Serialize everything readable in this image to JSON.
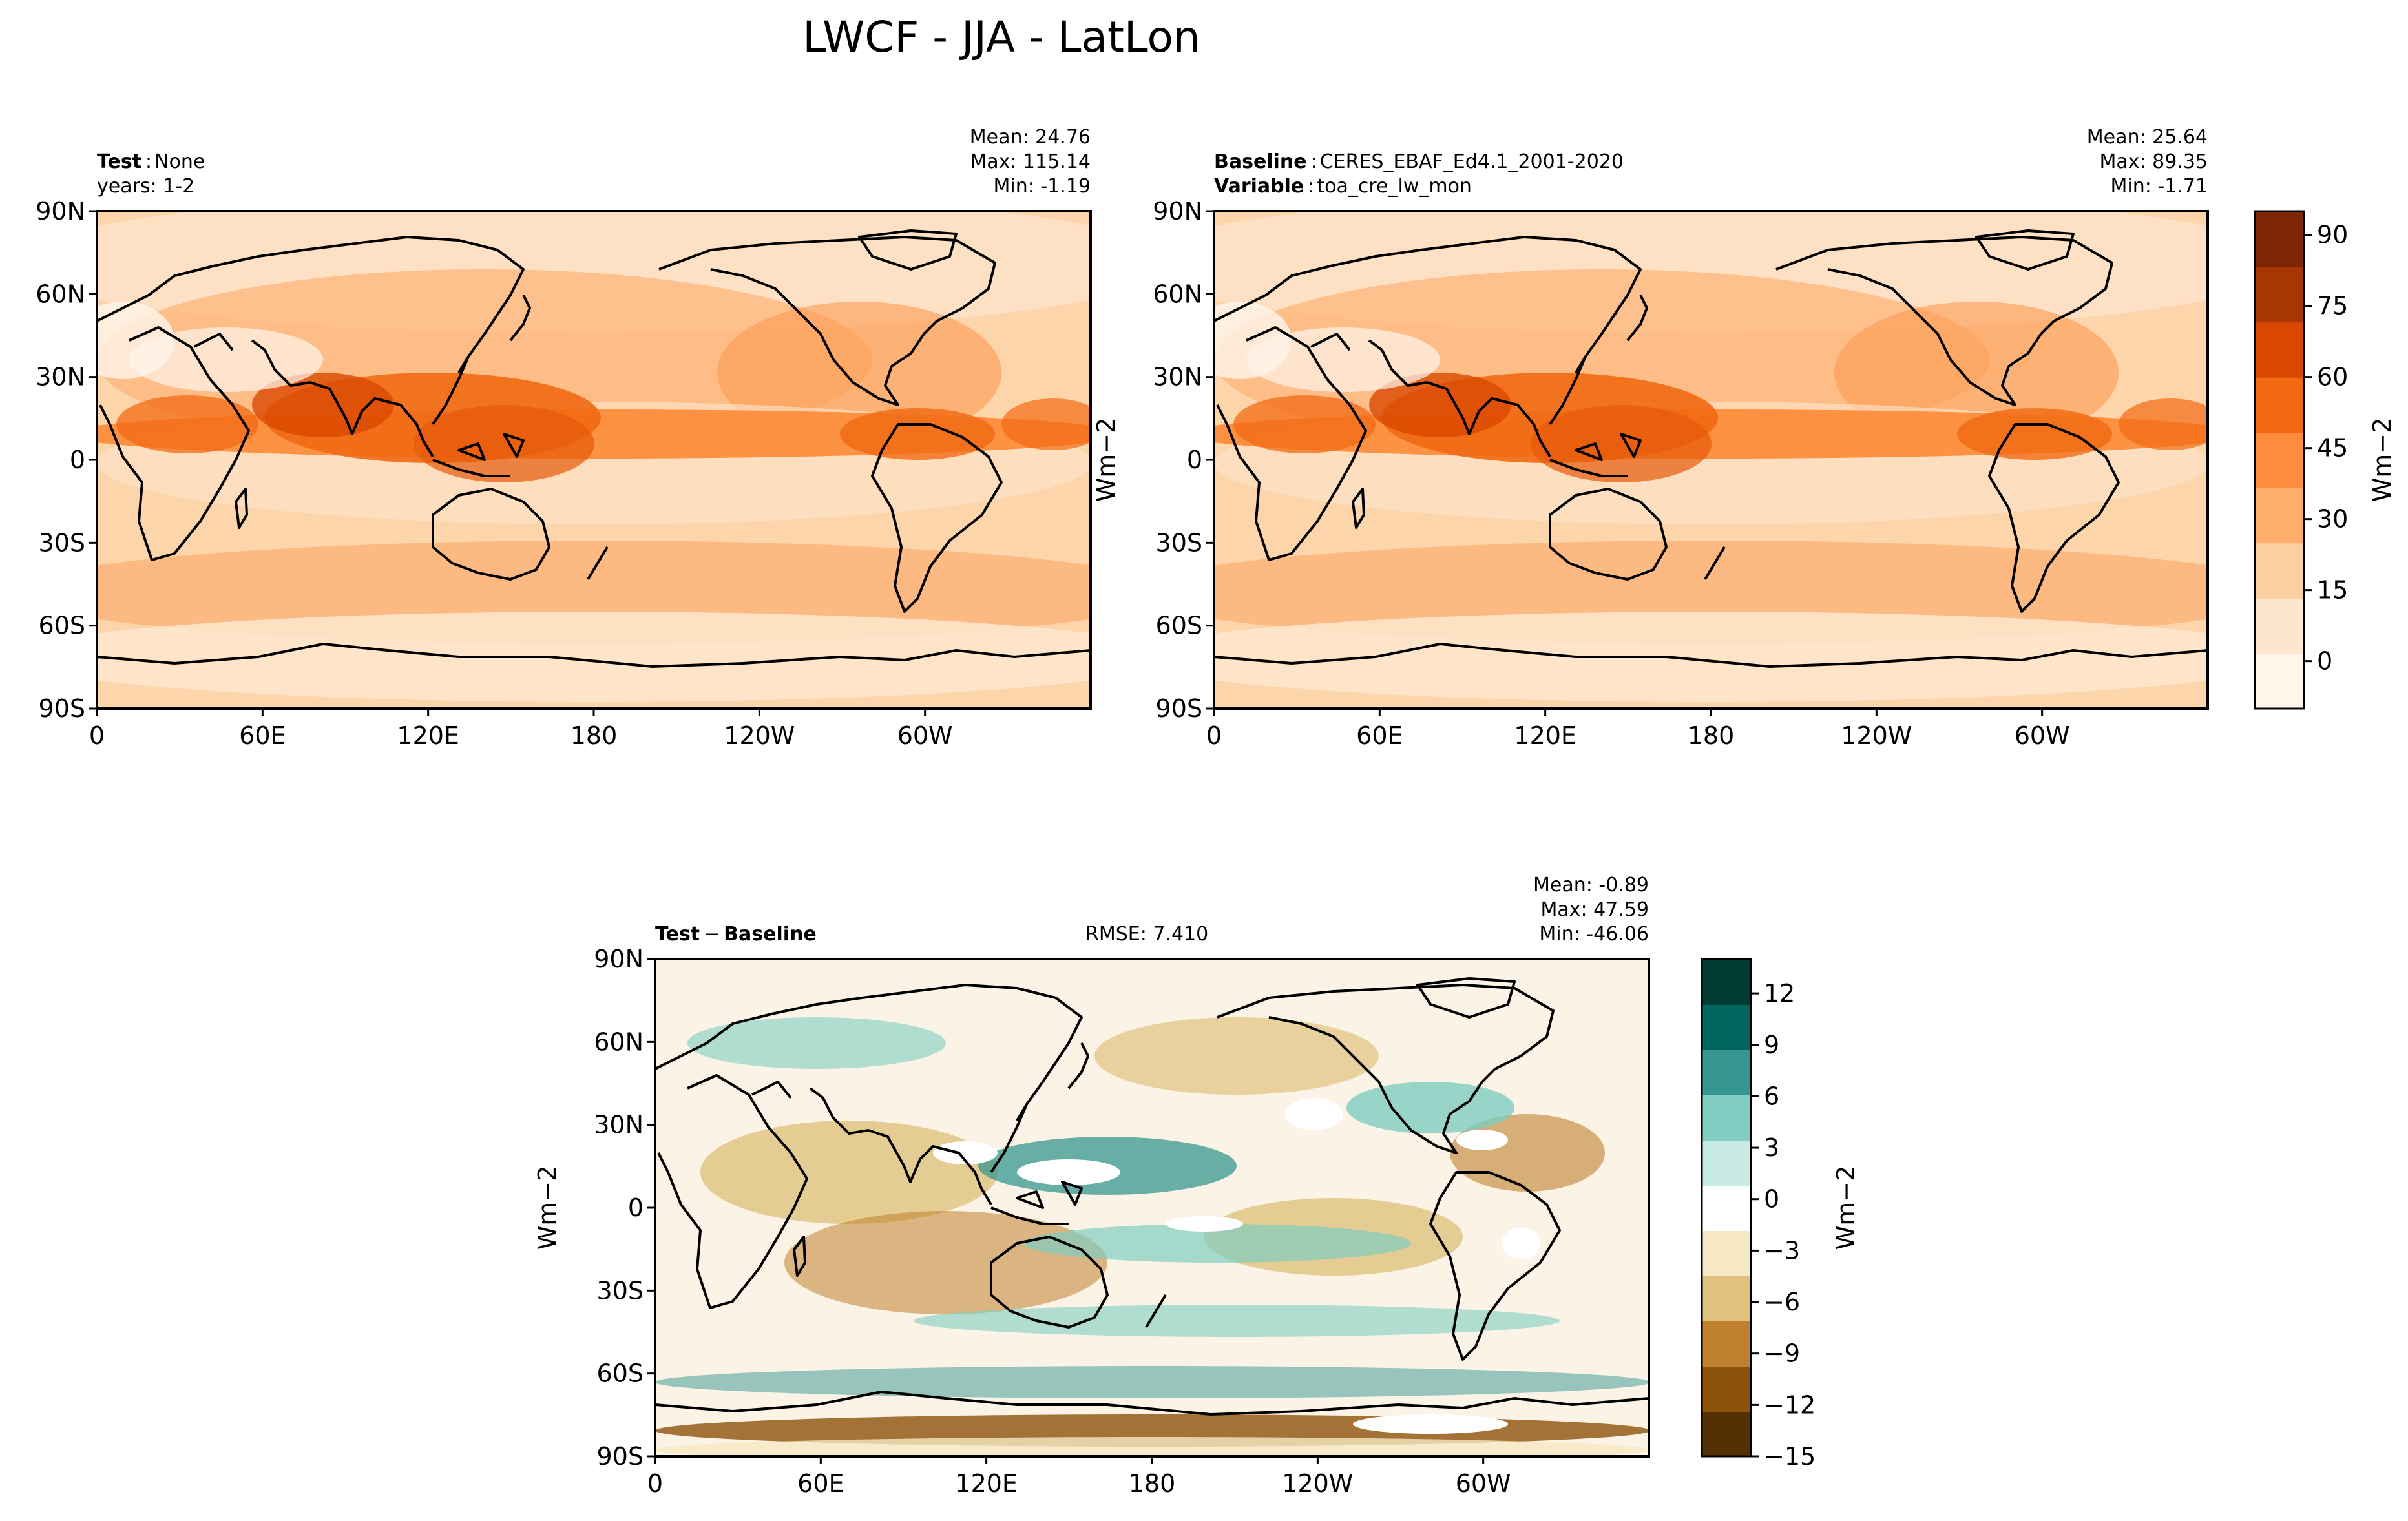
{
  "figure": {
    "title": "LWCF - JJA - LatLon"
  },
  "map_ticks": {
    "lat": [
      "90N",
      "60N",
      "30N",
      "0",
      "30S",
      "60S",
      "90S"
    ],
    "lon": [
      "0",
      "60E",
      "120E",
      "180",
      "120W",
      "60W"
    ]
  },
  "chart_data": [
    {
      "type": "heatmap",
      "name": "test-panel",
      "label_bold": "Test",
      "label_value": "None",
      "line2_text": "years: 1-2",
      "stats": [
        "Mean: 24.76",
        "Max: 115.14",
        "Min: -1.19"
      ],
      "mean": 24.76,
      "max": 115.14,
      "min": -1.19,
      "ylabel": "Wm−2",
      "xlim": [
        0,
        360
      ],
      "ylim": [
        -90,
        90
      ]
    },
    {
      "type": "heatmap",
      "name": "baseline-panel",
      "label_bold": "Baseline",
      "label_value": "CERES_EBAF_Ed4.1_2001-2020",
      "line2_bold": "Variable",
      "line2_value": "toa_cre_lw_mon",
      "stats": [
        "Mean: 25.64",
        "Max: 89.35",
        "Min: -1.71"
      ],
      "mean": 25.64,
      "max": 89.35,
      "min": -1.71,
      "ylabel": "Wm−2",
      "xlim": [
        0,
        360
      ],
      "ylim": [
        -90,
        90
      ]
    },
    {
      "type": "heatmap",
      "name": "diff-panel",
      "label_bold_1": "Test",
      "label_sep": "−",
      "label_bold_2": "Baseline",
      "rmse_text": "RMSE: 7.410",
      "rmse": 7.41,
      "stats": [
        "Mean: -0.89",
        "Max: 47.59",
        "Min: -46.06"
      ],
      "mean": -0.89,
      "max": 47.59,
      "min": -46.06,
      "ylabel": "Wm−2",
      "xlim": [
        0,
        360
      ],
      "ylim": [
        -90,
        90
      ]
    }
  ],
  "colorbars": {
    "main": {
      "label": "Wm−2",
      "ticks": [
        "90",
        "75",
        "60",
        "45",
        "30",
        "15",
        "0"
      ],
      "tick_values": [
        90,
        75,
        60,
        45,
        30,
        15,
        0
      ],
      "range": [
        -10,
        95
      ],
      "colors": [
        "#fff5eb",
        "#fee6ce",
        "#fdd0a2",
        "#fdae6b",
        "#fd8d3c",
        "#f16913",
        "#d94801",
        "#a63603",
        "#7f2704"
      ]
    },
    "diff": {
      "label": "Wm−2",
      "ticks": [
        "12",
        "9",
        "6",
        "3",
        "0",
        "−3",
        "−6",
        "−9",
        "−12",
        "−15"
      ],
      "tick_values": [
        12,
        9,
        6,
        3,
        0,
        -3,
        -6,
        -9,
        -12,
        -15
      ],
      "range": [
        -15,
        14
      ],
      "colors": [
        "#543005",
        "#8c510a",
        "#bf812d",
        "#dfc27d",
        "#f6e8c3",
        "#ffffff",
        "#c7eae5",
        "#80cdc1",
        "#35978f",
        "#01665e",
        "#003c30"
      ]
    }
  }
}
